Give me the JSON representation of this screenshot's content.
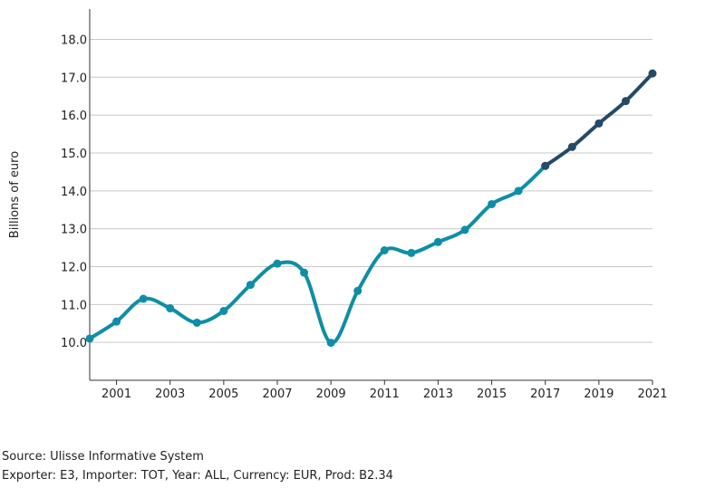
{
  "chart_data": {
    "type": "line",
    "title": "",
    "xlabel": "",
    "ylabel": "Billions of euro",
    "x": [
      2000,
      2001,
      2002,
      2003,
      2004,
      2005,
      2006,
      2007,
      2008,
      2009,
      2010,
      2011,
      2012,
      2013,
      2014,
      2015,
      2016,
      2017,
      2018,
      2019,
      2020,
      2021
    ],
    "series": [
      {
        "values": [
          10.1,
          10.55,
          11.15,
          10.9,
          10.52,
          10.83,
          11.52,
          12.08,
          11.84,
          9.99,
          11.36,
          12.43,
          12.36,
          12.65,
          12.97,
          13.65,
          14.0,
          14.66,
          null,
          null,
          null,
          null
        ],
        "color": "#0e8ea6"
      },
      {
        "values": [
          null,
          null,
          null,
          null,
          null,
          null,
          null,
          null,
          null,
          null,
          null,
          null,
          null,
          null,
          null,
          null,
          null,
          14.66,
          15.16,
          15.78,
          16.37,
          17.1
        ],
        "color": "#234a66"
      }
    ],
    "xticks": [
      "2001",
      "2003",
      "2005",
      "2007",
      "2009",
      "2011",
      "2013",
      "2015",
      "2017",
      "2019",
      "2021"
    ],
    "yticks": [
      "10.0",
      "11.0",
      "12.0",
      "13.0",
      "14.0",
      "15.0",
      "16.0",
      "17.0",
      "18.0"
    ],
    "xlim": [
      2000,
      2021
    ],
    "ylim": [
      9.0,
      18.8
    ],
    "grid": "horizontal",
    "legend": "none"
  },
  "footer": {
    "source": "Source: Ulisse Informative System",
    "info": "Exporter: E3, Importer: TOT, Year: ALL, Currency: EUR, Prod: B2.34"
  }
}
